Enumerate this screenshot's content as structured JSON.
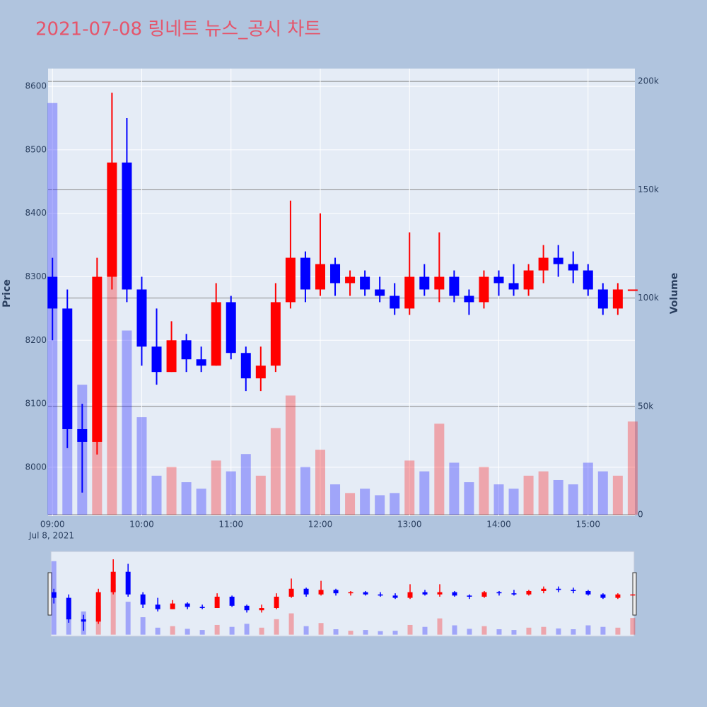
{
  "chart_data": {
    "type": "candlestick",
    "title": "2021-07-08 링네트 뉴스_공시 차트",
    "y_label": "Price",
    "y2_label": "Volume",
    "x": [
      "09:00",
      "09:10",
      "09:20",
      "09:30",
      "09:40",
      "09:50",
      "10:00",
      "10:10",
      "10:20",
      "10:30",
      "10:40",
      "10:50",
      "11:00",
      "11:10",
      "11:20",
      "11:30",
      "11:40",
      "11:50",
      "12:00",
      "12:10",
      "12:20",
      "12:30",
      "12:40",
      "12:50",
      "13:00",
      "13:10",
      "13:20",
      "13:30",
      "13:40",
      "13:50",
      "14:00",
      "14:10",
      "14:20",
      "14:30",
      "14:40",
      "14:50",
      "15:00",
      "15:10",
      "15:20",
      "15:30"
    ],
    "open": [
      8300,
      8250,
      8060,
      8040,
      8300,
      8480,
      8280,
      8190,
      8150,
      8200,
      8170,
      8160,
      8260,
      8180,
      8140,
      8160,
      8260,
      8330,
      8280,
      8320,
      8290,
      8300,
      8280,
      8270,
      8250,
      8300,
      8280,
      8300,
      8270,
      8260,
      8300,
      8290,
      8280,
      8310,
      8330,
      8320,
      8310,
      8280,
      8250,
      8280
    ],
    "high": [
      8330,
      8280,
      8100,
      8330,
      8590,
      8550,
      8300,
      8250,
      8230,
      8210,
      8190,
      8290,
      8270,
      8190,
      8190,
      8290,
      8420,
      8340,
      8400,
      8330,
      8310,
      8310,
      8300,
      8290,
      8370,
      8320,
      8370,
      8310,
      8280,
      8310,
      8310,
      8320,
      8320,
      8350,
      8350,
      8340,
      8320,
      8290,
      8290,
      8280
    ],
    "low": [
      8200,
      8030,
      7960,
      8020,
      8280,
      8260,
      8160,
      8130,
      8150,
      8150,
      8150,
      8160,
      8170,
      8120,
      8120,
      8150,
      8250,
      8260,
      8270,
      8270,
      8270,
      8270,
      8260,
      8240,
      8240,
      8270,
      8260,
      8260,
      8240,
      8250,
      8270,
      8270,
      8270,
      8290,
      8300,
      8290,
      8270,
      8240,
      8240,
      8280
    ],
    "close": [
      8250,
      8060,
      8040,
      8300,
      8480,
      8280,
      8190,
      8150,
      8200,
      8170,
      8160,
      8260,
      8180,
      8140,
      8160,
      8260,
      8330,
      8280,
      8320,
      8290,
      8300,
      8280,
      8270,
      8250,
      8300,
      8280,
      8300,
      8270,
      8260,
      8300,
      8290,
      8280,
      8310,
      8330,
      8320,
      8310,
      8280,
      8250,
      8280,
      8280
    ],
    "volume": [
      190000,
      90000,
      60000,
      75000,
      130000,
      85000,
      45000,
      18000,
      22000,
      15000,
      12000,
      25000,
      20000,
      28000,
      18000,
      40000,
      55000,
      22000,
      30000,
      14000,
      10000,
      12000,
      9000,
      10000,
      25000,
      20000,
      42000,
      24000,
      15000,
      22000,
      14000,
      12000,
      18000,
      20000,
      16000,
      14000,
      24000,
      20000,
      18000,
      43000
    ],
    "increasing_color": "#ff0000",
    "decreasing_color": "#0000ff",
    "xlim": [
      "08:58",
      "15:31"
    ],
    "xticks": [
      "09:00",
      "10:00",
      "11:00",
      "12:00",
      "13:00",
      "14:00",
      "15:00"
    ],
    "x_date": "Jul 8, 2021",
    "ylim": [
      7923,
      8628
    ],
    "yticks": [
      8000,
      8100,
      8200,
      8300,
      8400,
      8500,
      8600
    ],
    "y2lim": [
      -650,
      205900
    ],
    "y2ticks": [
      {
        "value": 0,
        "label": "0"
      },
      {
        "value": 50000,
        "label": "50k"
      },
      {
        "value": 100000,
        "label": "100k"
      },
      {
        "value": 150000,
        "label": "150k"
      },
      {
        "value": 200000,
        "label": "200k"
      }
    ],
    "grid": true,
    "rangeslider": true
  }
}
